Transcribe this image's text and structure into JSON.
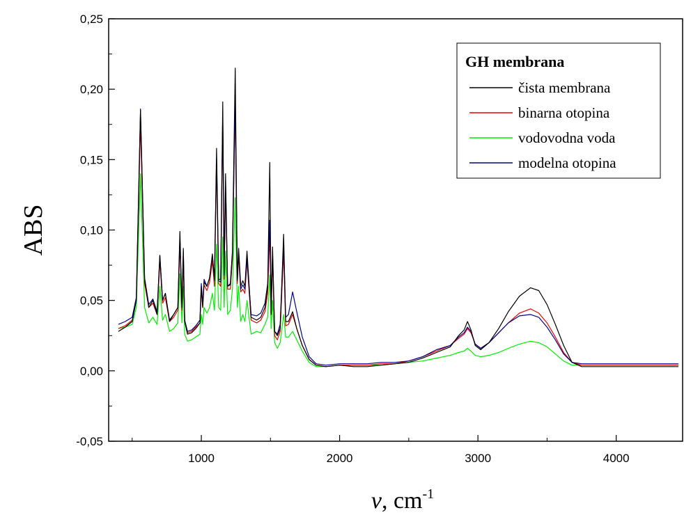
{
  "chart_data": {
    "type": "line",
    "xlabel": "ν, cm",
    "xlabel_sup": "-1",
    "ylabel": "ABS",
    "xlim": [
      330,
      4480
    ],
    "ylim": [
      -0.05,
      0.25
    ],
    "x_ticks": [
      1000,
      2000,
      3000,
      4000
    ],
    "x_tick_labels": [
      "1000",
      "2000",
      "3000",
      "4000"
    ],
    "y_ticks": [
      -0.05,
      0,
      0.05,
      0.1,
      0.15,
      0.2,
      0.25
    ],
    "y_tick_labels": [
      "-0,05",
      "0,00",
      "0,05",
      "0,10",
      "0,15",
      "0,20",
      "0,25"
    ],
    "grid": false,
    "legend": {
      "title": "GH membrana",
      "placement": "top-right"
    },
    "series": [
      {
        "name": "čista membrana",
        "color": "#000000",
        "x": [
          400,
          450,
          500,
          530,
          560,
          590,
          620,
          650,
          680,
          700,
          720,
          740,
          770,
          800,
          830,
          845,
          860,
          870,
          880,
          900,
          930,
          960,
          990,
          1000,
          1010,
          1020,
          1040,
          1060,
          1080,
          1095,
          1110,
          1125,
          1140,
          1155,
          1165,
          1175,
          1190,
          1210,
          1225,
          1245,
          1260,
          1270,
          1285,
          1300,
          1315,
          1330,
          1360,
          1400,
          1430,
          1460,
          1480,
          1495,
          1505,
          1515,
          1530,
          1550,
          1570,
          1595,
          1610,
          1630,
          1660,
          1690,
          1730,
          1780,
          1830,
          1900,
          2000,
          2100,
          2200,
          2300,
          2400,
          2500,
          2600,
          2700,
          2800,
          2860,
          2900,
          2925,
          2950,
          2980,
          3020,
          3080,
          3150,
          3220,
          3300,
          3380,
          3440,
          3500,
          3560,
          3620,
          3680,
          3750,
          3850,
          4000,
          4200,
          4450
        ],
        "y": [
          0.028,
          0.031,
          0.035,
          0.05,
          0.185,
          0.065,
          0.045,
          0.05,
          0.04,
          0.082,
          0.05,
          0.055,
          0.035,
          0.04,
          0.045,
          0.099,
          0.045,
          0.087,
          0.035,
          0.026,
          0.027,
          0.03,
          0.034,
          0.06,
          0.045,
          0.063,
          0.06,
          0.066,
          0.083,
          0.065,
          0.158,
          0.065,
          0.065,
          0.191,
          0.07,
          0.14,
          0.06,
          0.062,
          0.085,
          0.215,
          0.065,
          0.087,
          0.06,
          0.064,
          0.06,
          0.085,
          0.038,
          0.036,
          0.038,
          0.045,
          0.06,
          0.148,
          0.04,
          0.088,
          0.028,
          0.025,
          0.03,
          0.097,
          0.035,
          0.035,
          0.042,
          0.03,
          0.018,
          0.008,
          0.004,
          0.003,
          0.004,
          0.003,
          0.003,
          0.004,
          0.005,
          0.006,
          0.009,
          0.013,
          0.017,
          0.025,
          0.029,
          0.035,
          0.029,
          0.018,
          0.015,
          0.02,
          0.03,
          0.042,
          0.053,
          0.059,
          0.057,
          0.047,
          0.033,
          0.018,
          0.006,
          0.003,
          0.003,
          0.003,
          0.003,
          0.003
        ]
      },
      {
        "name": "binarna otopina",
        "color": "#ee0000",
        "x": [
          400,
          450,
          500,
          530,
          560,
          590,
          620,
          650,
          680,
          700,
          720,
          740,
          770,
          800,
          830,
          845,
          860,
          870,
          880,
          900,
          930,
          960,
          990,
          1000,
          1010,
          1020,
          1040,
          1060,
          1080,
          1095,
          1110,
          1125,
          1140,
          1155,
          1165,
          1175,
          1190,
          1210,
          1225,
          1245,
          1260,
          1270,
          1285,
          1300,
          1315,
          1330,
          1360,
          1400,
          1430,
          1460,
          1480,
          1495,
          1505,
          1515,
          1530,
          1550,
          1570,
          1595,
          1610,
          1630,
          1660,
          1690,
          1730,
          1780,
          1830,
          1900,
          2000,
          2100,
          2200,
          2300,
          2400,
          2500,
          2600,
          2700,
          2800,
          2860,
          2900,
          2925,
          2950,
          2980,
          3020,
          3080,
          3150,
          3220,
          3300,
          3380,
          3440,
          3500,
          3560,
          3620,
          3680,
          3750,
          3850,
          4000,
          4200,
          4450
        ],
        "y": [
          0.03,
          0.032,
          0.036,
          0.05,
          0.176,
          0.062,
          0.045,
          0.048,
          0.04,
          0.078,
          0.048,
          0.052,
          0.035,
          0.038,
          0.043,
          0.09,
          0.043,
          0.078,
          0.035,
          0.027,
          0.028,
          0.031,
          0.034,
          0.058,
          0.045,
          0.061,
          0.057,
          0.063,
          0.078,
          0.06,
          0.148,
          0.062,
          0.06,
          0.178,
          0.065,
          0.13,
          0.058,
          0.058,
          0.08,
          0.19,
          0.062,
          0.082,
          0.056,
          0.058,
          0.055,
          0.078,
          0.036,
          0.034,
          0.036,
          0.042,
          0.055,
          0.098,
          0.04,
          0.08,
          0.025,
          0.022,
          0.028,
          0.085,
          0.032,
          0.033,
          0.04,
          0.03,
          0.018,
          0.008,
          0.004,
          0.003,
          0.004,
          0.004,
          0.004,
          0.005,
          0.005,
          0.007,
          0.01,
          0.014,
          0.018,
          0.023,
          0.026,
          0.03,
          0.027,
          0.019,
          0.016,
          0.02,
          0.027,
          0.034,
          0.041,
          0.044,
          0.041,
          0.034,
          0.024,
          0.013,
          0.006,
          0.004,
          0.004,
          0.004,
          0.004,
          0.004
        ]
      },
      {
        "name": "vodovodna voda",
        "color": "#00ee00",
        "x": [
          400,
          450,
          500,
          530,
          560,
          590,
          620,
          650,
          680,
          700,
          720,
          740,
          770,
          800,
          830,
          845,
          860,
          870,
          880,
          900,
          930,
          960,
          990,
          1000,
          1010,
          1020,
          1040,
          1060,
          1080,
          1095,
          1110,
          1125,
          1140,
          1155,
          1165,
          1175,
          1190,
          1210,
          1225,
          1245,
          1260,
          1270,
          1285,
          1300,
          1315,
          1330,
          1360,
          1400,
          1430,
          1460,
          1480,
          1495,
          1505,
          1515,
          1530,
          1550,
          1570,
          1595,
          1610,
          1630,
          1660,
          1690,
          1730,
          1780,
          1830,
          1900,
          2000,
          2100,
          2200,
          2300,
          2400,
          2500,
          2600,
          2700,
          2800,
          2860,
          2900,
          2925,
          2950,
          2980,
          3020,
          3080,
          3150,
          3220,
          3300,
          3380,
          3440,
          3500,
          3560,
          3620,
          3680,
          3750,
          3850,
          4000,
          4200,
          4450
        ],
        "y": [
          0.03,
          0.031,
          0.033,
          0.045,
          0.14,
          0.045,
          0.034,
          0.038,
          0.033,
          0.06,
          0.036,
          0.04,
          0.028,
          0.03,
          0.034,
          0.069,
          0.034,
          0.06,
          0.026,
          0.021,
          0.022,
          0.024,
          0.026,
          0.04,
          0.033,
          0.045,
          0.041,
          0.045,
          0.055,
          0.043,
          0.09,
          0.045,
          0.043,
          0.095,
          0.045,
          0.085,
          0.04,
          0.043,
          0.058,
          0.123,
          0.045,
          0.06,
          0.035,
          0.04,
          0.035,
          0.05,
          0.026,
          0.028,
          0.027,
          0.033,
          0.038,
          0.068,
          0.03,
          0.05,
          0.02,
          0.016,
          0.02,
          0.04,
          0.024,
          0.024,
          0.028,
          0.022,
          0.014,
          0.006,
          0.003,
          0.003,
          0.004,
          0.004,
          0.004,
          0.004,
          0.005,
          0.006,
          0.007,
          0.009,
          0.011,
          0.013,
          0.014,
          0.016,
          0.014,
          0.011,
          0.01,
          0.011,
          0.013,
          0.016,
          0.019,
          0.021,
          0.02,
          0.017,
          0.012,
          0.007,
          0.004,
          0.004,
          0.004,
          0.004,
          0.004,
          0.004
        ]
      },
      {
        "name": "modelna otopina",
        "color": "#00008b",
        "x": [
          400,
          450,
          500,
          530,
          560,
          590,
          620,
          650,
          680,
          700,
          720,
          740,
          770,
          800,
          830,
          845,
          860,
          870,
          880,
          900,
          930,
          960,
          990,
          1000,
          1010,
          1020,
          1040,
          1060,
          1080,
          1095,
          1110,
          1125,
          1140,
          1155,
          1165,
          1175,
          1190,
          1210,
          1225,
          1245,
          1260,
          1270,
          1285,
          1300,
          1315,
          1330,
          1360,
          1400,
          1430,
          1460,
          1480,
          1495,
          1505,
          1515,
          1530,
          1550,
          1570,
          1595,
          1610,
          1630,
          1660,
          1690,
          1730,
          1780,
          1830,
          1900,
          2000,
          2100,
          2200,
          2300,
          2400,
          2500,
          2600,
          2700,
          2800,
          2860,
          2900,
          2925,
          2950,
          2980,
          3020,
          3080,
          3150,
          3220,
          3300,
          3380,
          3440,
          3500,
          3560,
          3620,
          3680,
          3750,
          3850,
          4000,
          4200,
          4450
        ],
        "y": [
          0.033,
          0.035,
          0.038,
          0.052,
          0.186,
          0.066,
          0.047,
          0.051,
          0.042,
          0.082,
          0.05,
          0.055,
          0.036,
          0.04,
          0.045,
          0.095,
          0.045,
          0.085,
          0.036,
          0.028,
          0.029,
          0.032,
          0.036,
          0.062,
          0.047,
          0.065,
          0.06,
          0.066,
          0.082,
          0.064,
          0.152,
          0.064,
          0.063,
          0.183,
          0.068,
          0.134,
          0.06,
          0.061,
          0.083,
          0.193,
          0.064,
          0.085,
          0.058,
          0.061,
          0.058,
          0.08,
          0.04,
          0.039,
          0.041,
          0.048,
          0.062,
          0.107,
          0.045,
          0.084,
          0.028,
          0.026,
          0.033,
          0.09,
          0.038,
          0.04,
          0.056,
          0.042,
          0.024,
          0.01,
          0.005,
          0.004,
          0.005,
          0.005,
          0.005,
          0.006,
          0.006,
          0.007,
          0.01,
          0.015,
          0.018,
          0.024,
          0.027,
          0.031,
          0.028,
          0.019,
          0.016,
          0.02,
          0.027,
          0.034,
          0.039,
          0.04,
          0.038,
          0.031,
          0.022,
          0.012,
          0.006,
          0.005,
          0.005,
          0.005,
          0.005,
          0.005
        ]
      }
    ]
  }
}
